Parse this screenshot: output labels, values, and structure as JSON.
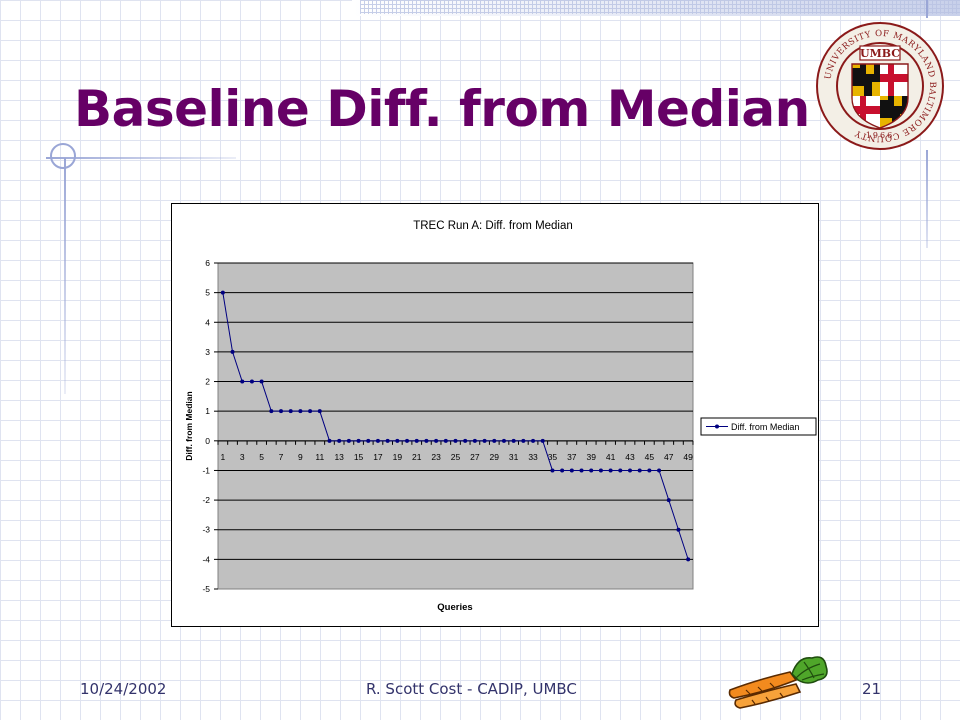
{
  "slide": {
    "title": "Baseline Diff. from Median",
    "footer_date": "10/24/2002",
    "footer_author": "R. Scott Cost - CADIP, UMBC",
    "footer_page": "21",
    "seal": {
      "arc_text": "UNIVERSITY OF MARYLAND BALTIMORE COUNTY",
      "center_text": "UMBC",
      "year": "1966",
      "colors": {
        "ring": "#8b1a1a",
        "gold": "#e7b400",
        "black": "#111111",
        "red": "#c8102e",
        "white": "#ffffff"
      }
    }
  },
  "colors": {
    "title": "#660066",
    "plot_bg": "#c0c0c0",
    "series": "#000080",
    "footer": "#33336b"
  },
  "chart_data": {
    "type": "line",
    "title": "TREC Run A: Diff. from Median",
    "xlabel": "Queries",
    "ylabel": "Diff. from Median",
    "ylim": [
      -5,
      6
    ],
    "yticks": [
      6,
      5,
      4,
      3,
      2,
      1,
      0,
      -1,
      -2,
      -3,
      -4,
      -5
    ],
    "xtick_labels": [
      "1",
      "3",
      "5",
      "7",
      "9",
      "11",
      "13",
      "15",
      "17",
      "19",
      "21",
      "23",
      "25",
      "27",
      "29",
      "31",
      "33",
      "35",
      "37",
      "39",
      "41",
      "43",
      "45",
      "47",
      "49"
    ],
    "grid": true,
    "legend_position": "right",
    "series": [
      {
        "name": "Diff. from Median",
        "x": [
          1,
          2,
          3,
          4,
          5,
          6,
          7,
          8,
          9,
          10,
          11,
          12,
          13,
          14,
          15,
          16,
          17,
          18,
          19,
          20,
          21,
          22,
          23,
          24,
          25,
          26,
          27,
          28,
          29,
          30,
          31,
          32,
          33,
          34,
          35,
          36,
          37,
          38,
          39,
          40,
          41,
          42,
          43,
          44,
          45,
          46,
          47,
          48,
          49
        ],
        "values": [
          5,
          3,
          2,
          2,
          2,
          1,
          1,
          1,
          1,
          1,
          1,
          0,
          0,
          0,
          0,
          0,
          0,
          0,
          0,
          0,
          0,
          0,
          0,
          0,
          0,
          0,
          0,
          0,
          0,
          0,
          0,
          0,
          0,
          0,
          -1,
          -1,
          -1,
          -1,
          -1,
          -1,
          -1,
          -1,
          -1,
          -1,
          -1,
          -1,
          -2,
          -3,
          -4
        ]
      }
    ]
  }
}
